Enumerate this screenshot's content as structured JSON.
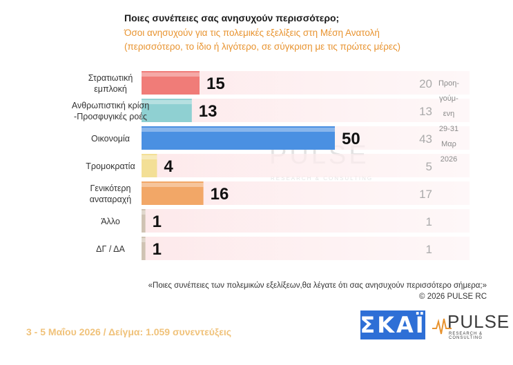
{
  "header": {
    "title": "Ποιες συνέπειες σας ανησυχούν περισσότερο;",
    "subtitle_line1": "Όσοι ανησυχούν για τις πολεμικές εξελίξεις στη Μέση Ανατολή",
    "subtitle_line2": "(περισσότερο, το ίδιο ή λιγότερο, σε σύγκριση με τις πρώτες μέρες)"
  },
  "prev_note": [
    "Προη-",
    "γούμ-",
    "ενη",
    "29-31",
    "Μαρ",
    "2026"
  ],
  "colors": {
    "bars": [
      "#f07c78",
      "#8fd0d2",
      "#4a90e2",
      "#f3df96",
      "#f2a767",
      "#cfc3b3",
      "#cfc3b3"
    ],
    "prev_band": "#fbe9ea",
    "title_orange": "#e8932f"
  },
  "chart_data": {
    "type": "bar",
    "orientation": "horizontal",
    "categories": [
      [
        "Στρατιωτική",
        "εμπλοκή"
      ],
      [
        "Ανθρωπιστική κρίση",
        "-Προσφυγικές ροές"
      ],
      [
        "Οικονομία"
      ],
      [
        "Τρομοκρατία"
      ],
      [
        "Γενικότερη",
        "αναταραχή"
      ],
      [
        "Άλλο"
      ],
      [
        "ΔΓ / ΔΑ"
      ]
    ],
    "series": [
      {
        "name": "",
        "values": [
          15,
          13,
          50,
          4,
          16,
          1,
          1
        ]
      },
      {
        "name": "Προηγούμενη 29-31 Μαρ 2026",
        "values": [
          20,
          13,
          43,
          5,
          17,
          1,
          1
        ]
      }
    ],
    "xlim": [
      0,
      75
    ],
    "grid": false,
    "legend": "right"
  },
  "footer": {
    "question": "«Ποιες συνέπειες των πολεμικών εξελίξεων,θα λέγατε ότι σας ανησυχούν περισσότερο σήμερα;»",
    "copyright": "© 2026 PULSE RC",
    "fieldwork": "3 - 5 Μαΐου 2026 / Δείγμα: 1.059 συνεντεύξεις"
  },
  "logos": {
    "skai": "ΣΚΑΪ",
    "pulse_word": "PULSE",
    "pulse_sub": "RESEARCH & CONSULTING"
  }
}
